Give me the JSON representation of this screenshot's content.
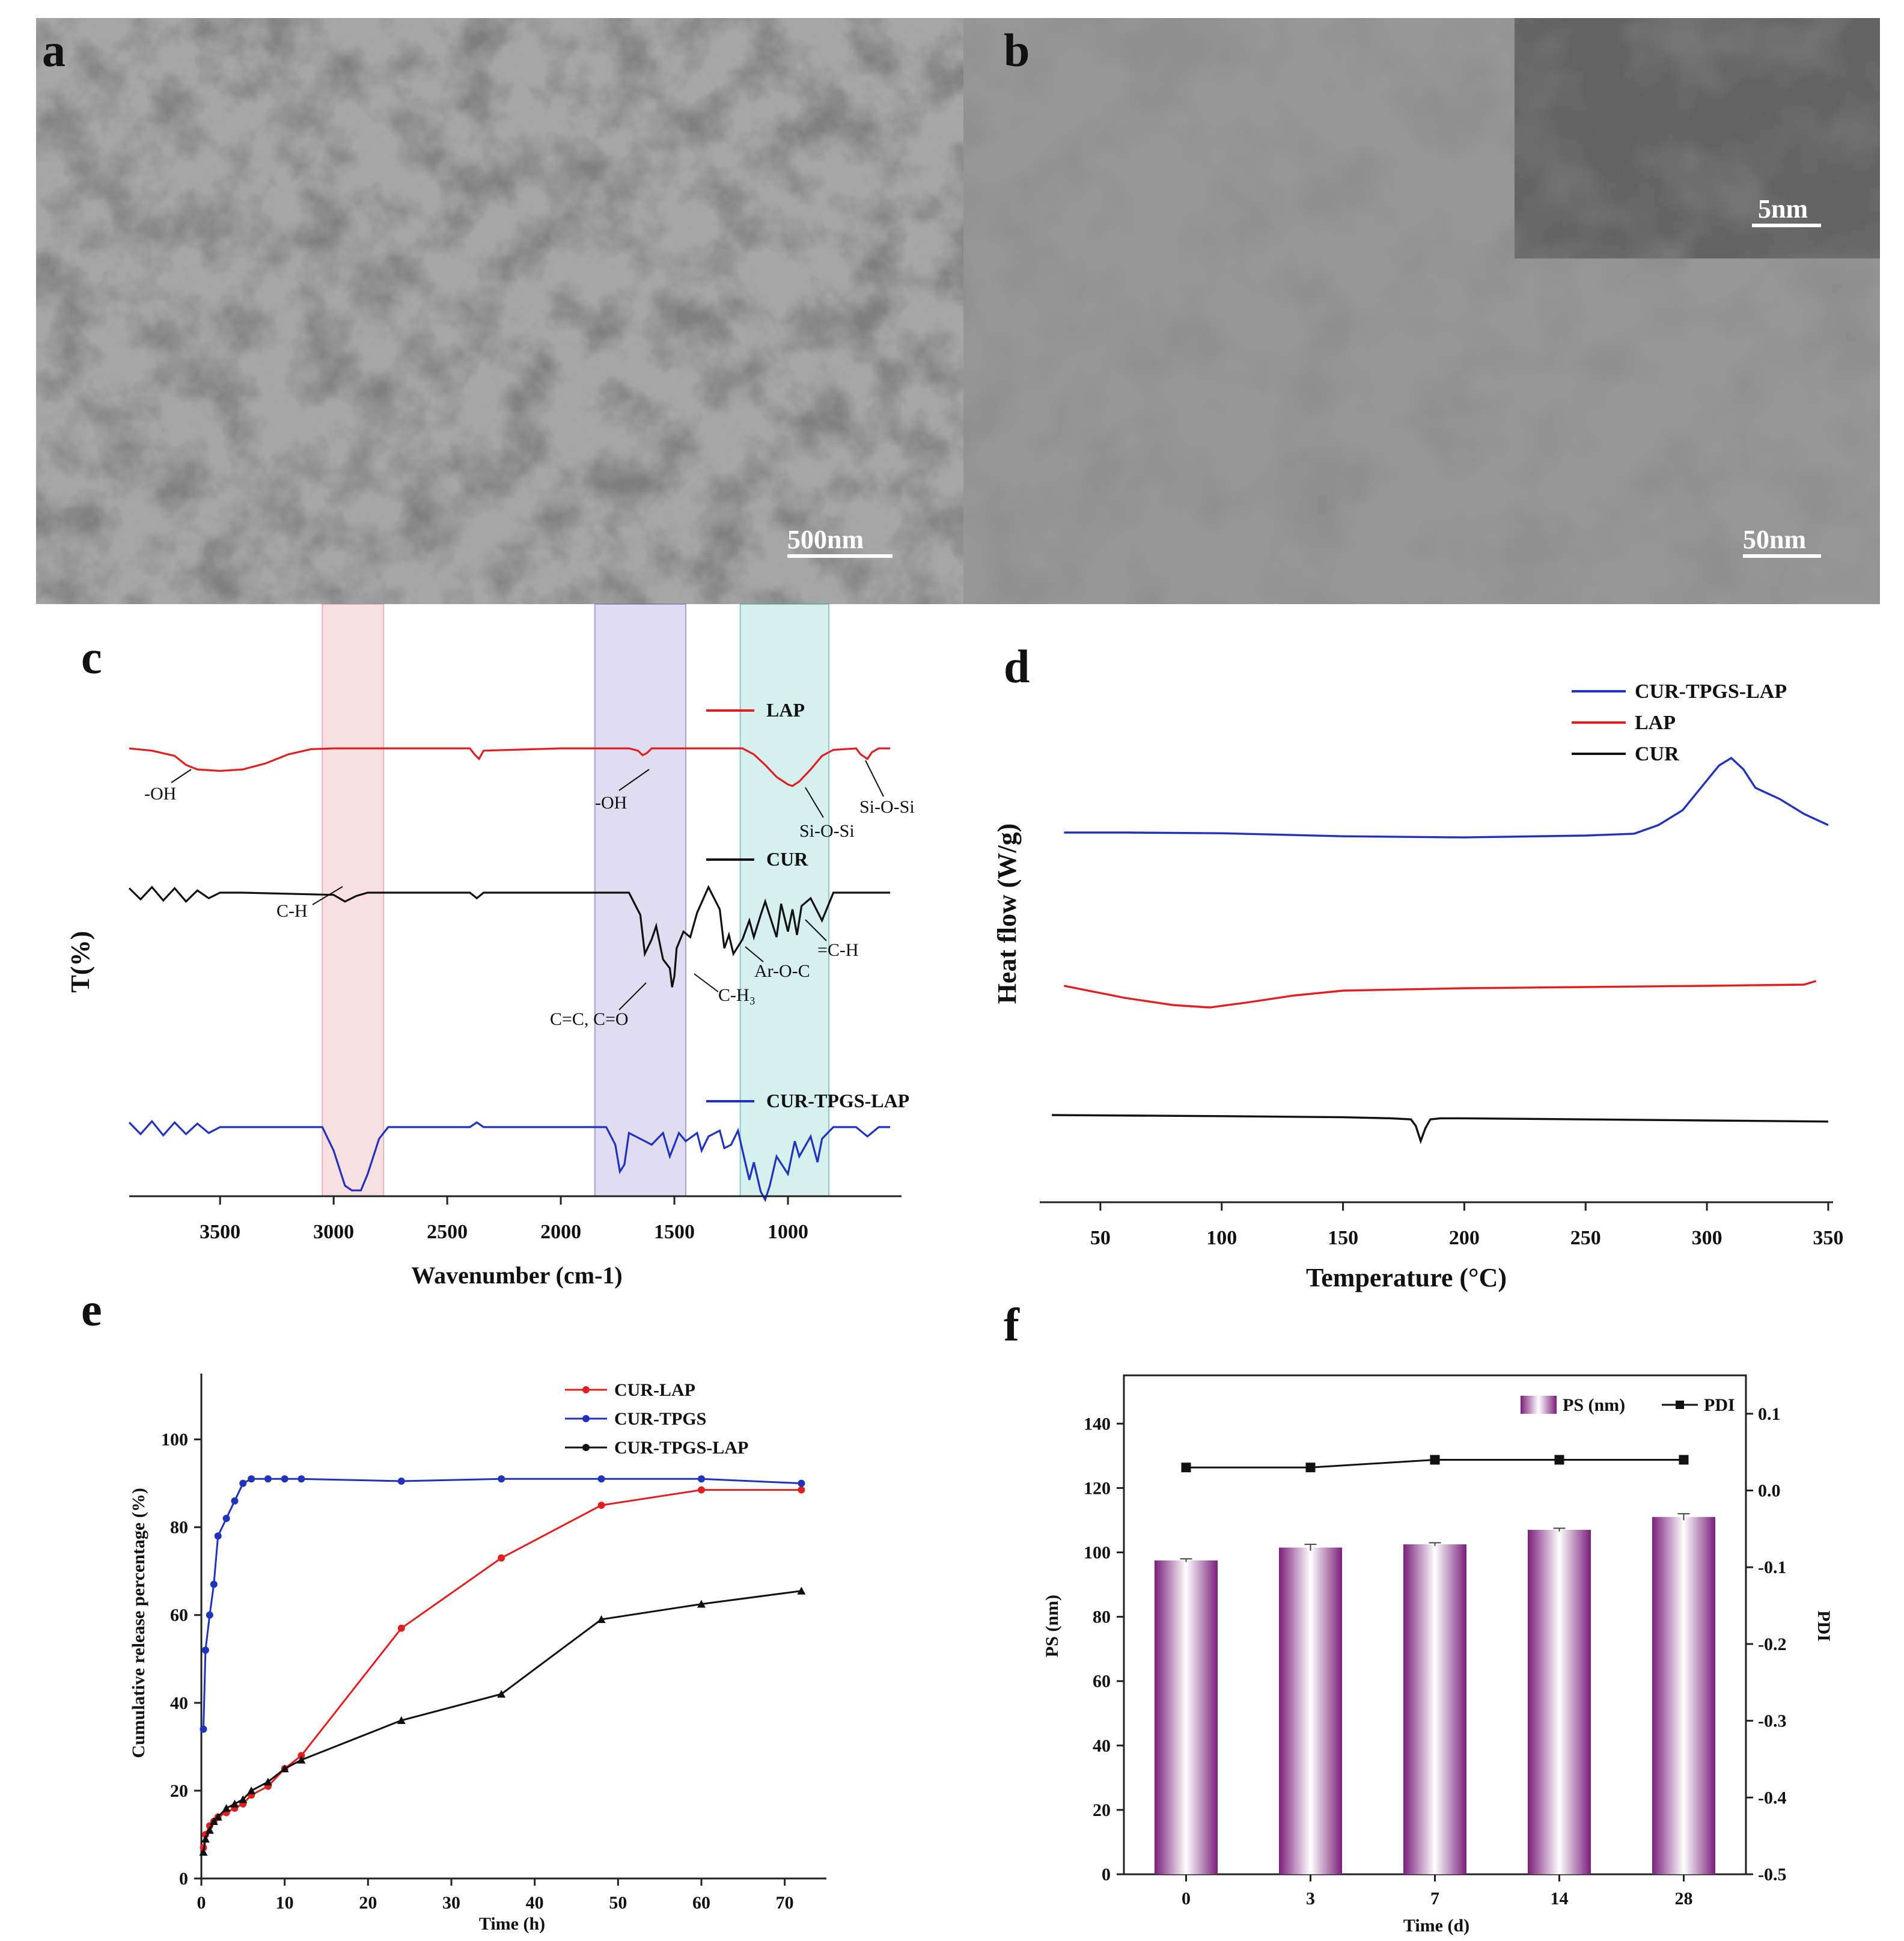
{
  "panels": {
    "a": {
      "letter": "a",
      "scale_bar": "500nm"
    },
    "b": {
      "letter": "b",
      "scale_bar": "50nm",
      "inset_scale_bar": "5nm"
    },
    "c": {
      "letter": "c"
    },
    "d": {
      "letter": "d"
    },
    "e": {
      "letter": "e"
    },
    "f": {
      "letter": "f"
    }
  },
  "colors": {
    "red": "#e02020",
    "blue": "#2233bb",
    "black": "#111111",
    "purple": "#8e2c8e",
    "band_pink": "#f4c6cc",
    "band_lavender": "#c9c2e6",
    "band_teal": "#b6e3e3"
  },
  "chart_data": [
    {
      "panel": "c",
      "type": "line",
      "xlabel": "Wavenumber (cm-1)",
      "ylabel": "T(%)",
      "xlim": [
        3900,
        500
      ],
      "x_reversed": true,
      "xticks": [
        3500,
        3000,
        2500,
        2000,
        1500,
        1000
      ],
      "highlight_bands": [
        [
          3050,
          2780
        ],
        [
          1850,
          1450
        ],
        [
          1210,
          820
        ]
      ],
      "series": [
        {
          "name": "LAP",
          "color": "red",
          "x": [
            3900,
            3800,
            3700,
            3650,
            3600,
            3500,
            3400,
            3300,
            3200,
            3100,
            3000,
            2400,
            2380,
            2360,
            2340,
            2000,
            1700,
            1660,
            1640,
            1620,
            1600,
            1200,
            1150,
            1100,
            1050,
            1000,
            980,
            950,
            900,
            850,
            800,
            700,
            680,
            650,
            630,
            600,
            550
          ],
          "y": [
            0,
            -3,
            -10,
            -22,
            -28,
            -30,
            -28,
            -20,
            -8,
            -1,
            0,
            0,
            -8,
            -14,
            -3,
            0,
            0,
            -3,
            -9,
            -6,
            0,
            0,
            -8,
            -22,
            -38,
            -48,
            -50,
            -44,
            -28,
            -10,
            -2,
            0,
            -8,
            -14,
            -5,
            0,
            0
          ]
        },
        {
          "name": "CUR",
          "color": "black",
          "x": [
            3900,
            3850,
            3800,
            3750,
            3700,
            3650,
            3600,
            3550,
            3500,
            3400,
            3000,
            2950,
            2900,
            2850,
            2400,
            2370,
            2340,
            1800,
            1700,
            1650,
            1630,
            1600,
            1580,
            1550,
            1520,
            1510,
            1500,
            1490,
            1460,
            1430,
            1400,
            1350,
            1300,
            1280,
            1260,
            1240,
            1200,
            1170,
            1150,
            1120,
            1100,
            1050,
            1030,
            1000,
            980,
            960,
            940,
            900,
            850,
            820,
            800,
            700,
            600,
            550
          ],
          "y": [
            4,
            -6,
            5,
            -7,
            4,
            -8,
            2,
            -5,
            0,
            0,
            -2,
            -8,
            -3,
            0,
            0,
            -5,
            0,
            0,
            0,
            -20,
            -55,
            -42,
            -30,
            -60,
            -68,
            -85,
            -75,
            -50,
            -35,
            -40,
            -18,
            5,
            -15,
            -50,
            -38,
            -55,
            -42,
            -25,
            -40,
            -20,
            -8,
            -40,
            -10,
            -35,
            -15,
            -38,
            -12,
            -5,
            -25,
            -10,
            0,
            0,
            0,
            0
          ]
        },
        {
          "name": "CUR-TPGS-LAP",
          "color": "blue",
          "x": [
            3900,
            3850,
            3800,
            3750,
            3700,
            3650,
            3600,
            3550,
            3500,
            3400,
            3200,
            3050,
            3000,
            2950,
            2920,
            2880,
            2850,
            2800,
            2760,
            2400,
            2370,
            2340,
            1800,
            1760,
            1740,
            1720,
            1700,
            1650,
            1600,
            1550,
            1520,
            1500,
            1480,
            1450,
            1400,
            1380,
            1350,
            1300,
            1280,
            1250,
            1220,
            1200,
            1170,
            1150,
            1120,
            1100,
            1080,
            1050,
            1000,
            970,
            950,
            900,
            870,
            850,
            800,
            700,
            650,
            600,
            550
          ],
          "y": [
            4,
            -6,
            5,
            -7,
            4,
            -6,
            3,
            -5,
            0,
            0,
            0,
            0,
            -20,
            -50,
            -54,
            -54,
            -40,
            -10,
            0,
            0,
            4,
            0,
            0,
            -15,
            -38,
            -32,
            -5,
            -10,
            -15,
            -5,
            -25,
            -15,
            -5,
            -12,
            -5,
            -20,
            -8,
            -3,
            -18,
            -15,
            -3,
            -20,
            -45,
            -30,
            -55,
            -62,
            -50,
            -25,
            -40,
            -12,
            -25,
            -8,
            -30,
            -10,
            0,
            0,
            -8,
            0,
            0
          ]
        }
      ]
    },
    {
      "panel": "d",
      "type": "line",
      "xlabel": "Temperature (°C)",
      "ylabel": "Heat flow (W/g)",
      "xlim": [
        25,
        352
      ],
      "xticks": [
        50,
        100,
        150,
        200,
        250,
        300,
        350
      ],
      "series": [
        {
          "name": "CUR-TPGS-LAP",
          "color": "blue",
          "x": [
            35,
            60,
            100,
            150,
            200,
            250,
            270,
            280,
            290,
            300,
            305,
            310,
            315,
            320,
            330,
            340,
            350
          ],
          "y": [
            0,
            0,
            -0.2,
            -1,
            -1.3,
            -0.8,
            -0.3,
            2,
            6,
            14,
            18,
            20,
            17,
            12,
            9,
            5,
            2
          ]
        },
        {
          "name": "LAP",
          "color": "red",
          "x": [
            35,
            40,
            50,
            60,
            80,
            95,
            110,
            130,
            150,
            200,
            250,
            300,
            340,
            345
          ],
          "y": [
            0,
            -1,
            -3,
            -5,
            -8,
            -9,
            -7,
            -4,
            -2,
            -1,
            -0.5,
            0,
            0.5,
            2
          ]
        },
        {
          "name": "CUR",
          "color": "black",
          "x": [
            30,
            100,
            150,
            170,
            178,
            180,
            182,
            184,
            186,
            190,
            200,
            250,
            300,
            350
          ],
          "y": [
            0,
            -0.5,
            -1,
            -1.5,
            -2,
            -5,
            -12,
            -6,
            -2,
            -1.5,
            -1.5,
            -2,
            -2.5,
            -3
          ]
        }
      ]
    },
    {
      "panel": "e",
      "type": "line",
      "xlabel": "Time (h)",
      "ylabel": "Cumulative release percentage (%)",
      "xlim": [
        0,
        75
      ],
      "ylim": [
        0,
        115
      ],
      "xticks": [
        0,
        10,
        20,
        30,
        40,
        50,
        60,
        70
      ],
      "yticks": [
        0,
        20,
        40,
        60,
        80,
        100
      ],
      "series": [
        {
          "name": "CUR-LAP",
          "color": "red",
          "x": [
            0.25,
            0.5,
            1,
            1.5,
            2,
            3,
            4,
            5,
            6,
            8,
            10,
            12,
            24,
            36,
            48,
            60,
            72
          ],
          "y": [
            7,
            10,
            12,
            13,
            14,
            15,
            16,
            17,
            19,
            21,
            25,
            28,
            57,
            73,
            85,
            88.5,
            88.5
          ]
        },
        {
          "name": "CUR-TPGS",
          "color": "blue",
          "x": [
            0.25,
            0.5,
            1,
            1.5,
            2,
            3,
            4,
            5,
            6,
            8,
            10,
            12,
            24,
            36,
            48,
            60,
            72
          ],
          "y": [
            34,
            52,
            60,
            67,
            78,
            82,
            86,
            90,
            91,
            91,
            91,
            91,
            90.5,
            91,
            91,
            91,
            90
          ]
        },
        {
          "name": "CUR-TPGS-LAP",
          "color": "black",
          "x": [
            0.25,
            0.5,
            1,
            1.5,
            2,
            3,
            4,
            5,
            6,
            8,
            10,
            12,
            24,
            36,
            48,
            60,
            72
          ],
          "y": [
            6,
            9,
            11,
            13,
            14,
            16,
            17,
            18,
            20,
            22,
            25,
            27,
            36,
            42,
            59,
            62.5,
            65.5
          ]
        }
      ]
    },
    {
      "panel": "f",
      "type": "bar",
      "xlabel": "Time (d)",
      "ylabel": "PS (nm)",
      "y2label": "PDI",
      "categories": [
        "0",
        "3",
        "7",
        "14",
        "28"
      ],
      "ylim": [
        0,
        155
      ],
      "yticks": [
        0,
        20,
        40,
        60,
        80,
        100,
        120,
        140
      ],
      "y2lim": [
        -0.5,
        0.15
      ],
      "y2ticks": [
        "-0.5",
        "-0.4",
        "-0.3",
        "-0.2",
        "-0.1",
        "0.0",
        "0.1"
      ],
      "series": [
        {
          "name": "PS (nm)",
          "type": "bar",
          "color": "purple",
          "values": [
            97.5,
            101.5,
            102.5,
            107,
            111
          ],
          "errors": [
            0.5,
            1,
            0.5,
            0.5,
            1
          ]
        },
        {
          "name": "PDI",
          "type": "line",
          "color": "black",
          "values": [
            0.03,
            0.03,
            0.04,
            0.04,
            0.04
          ]
        }
      ]
    }
  ]
}
